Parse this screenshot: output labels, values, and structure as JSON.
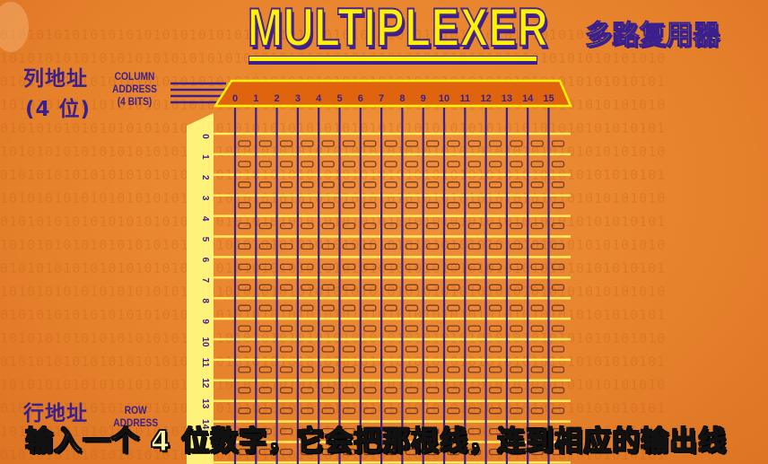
{
  "title": "MULTIPLEXER",
  "title_cn": "多路复用器",
  "column_address": {
    "cn": "列地址",
    "cn_bits": "(4 位)",
    "en_line1": "COLUMN",
    "en_line2": "ADDRESS",
    "en_line3": "(4 BITS)"
  },
  "row_address": {
    "cn": "行地址",
    "en_line1": "ROW",
    "en_line2": "ADDRESS"
  },
  "column_labels": [
    "0",
    "1",
    "2",
    "3",
    "4",
    "5",
    "6",
    "7",
    "8",
    "9",
    "10",
    "11",
    "12",
    "13",
    "14",
    "15"
  ],
  "row_labels": [
    "0",
    "1",
    "2",
    "3",
    "4",
    "5",
    "6",
    "7",
    "8",
    "9",
    "10",
    "11",
    "12",
    "13",
    "14"
  ],
  "subtitle": "输入一个 4 位数字，它会把那根线，连到相应的输出线",
  "colors": {
    "background": "#e7822c",
    "accent_yellow": "#fff200",
    "purple": "#3b1f8c",
    "header_orange": "#e0640e"
  }
}
